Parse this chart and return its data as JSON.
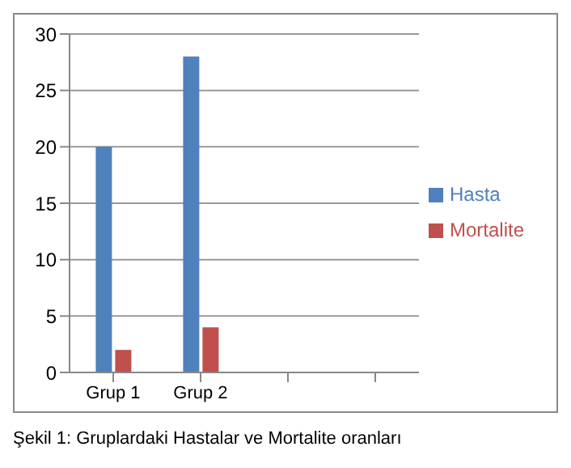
{
  "chart_data": {
    "type": "bar",
    "categories": [
      "Grup 1",
      "Grup 2",
      null,
      null
    ],
    "series": [
      {
        "name": "Hasta",
        "color": "#4f81bd",
        "values": [
          20,
          28,
          null,
          null
        ]
      },
      {
        "name": "Mortalite",
        "color": "#c0504d",
        "values": [
          2,
          4,
          null,
          null
        ]
      }
    ],
    "ylim": [
      0,
      30
    ],
    "yticks": [
      0,
      5,
      10,
      15,
      20,
      25,
      30
    ],
    "grid": "y",
    "legend": "right",
    "annotations": [
      "Şekil 1: Gruplardaki Hastalar ve Mortalite oranları"
    ]
  }
}
